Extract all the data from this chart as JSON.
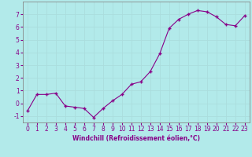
{
  "x": [
    0,
    1,
    2,
    3,
    4,
    5,
    6,
    7,
    8,
    9,
    10,
    11,
    12,
    13,
    14,
    15,
    16,
    17,
    18,
    19,
    20,
    21,
    22,
    23
  ],
  "y": [
    -0.6,
    0.7,
    0.7,
    0.8,
    -0.2,
    -0.3,
    -0.4,
    -1.1,
    -0.4,
    0.2,
    0.7,
    1.5,
    1.7,
    2.5,
    3.9,
    5.9,
    6.6,
    7.0,
    7.3,
    7.2,
    6.8,
    6.2,
    6.1,
    6.9
  ],
  "line_color": "#880088",
  "marker": "+",
  "marker_size": 3,
  "bg_color": "#b2eaea",
  "grid_color": "#aadddd",
  "xlabel": "Windchill (Refroidissement éolien,°C)",
  "xlabel_color": "#880088",
  "tick_color": "#880088",
  "spine_color": "#888888",
  "ylim": [
    -1.5,
    8.0
  ],
  "xlim": [
    -0.5,
    23.5
  ],
  "yticks": [
    -1,
    0,
    1,
    2,
    3,
    4,
    5,
    6,
    7
  ],
  "xticks": [
    0,
    1,
    2,
    3,
    4,
    5,
    6,
    7,
    8,
    9,
    10,
    11,
    12,
    13,
    14,
    15,
    16,
    17,
    18,
    19,
    20,
    21,
    22,
    23
  ],
  "tick_fontsize": 5.5,
  "xlabel_fontsize": 5.5
}
